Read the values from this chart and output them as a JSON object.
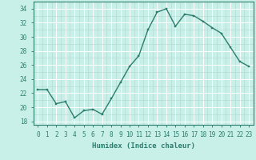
{
  "x": [
    0,
    1,
    2,
    3,
    4,
    5,
    6,
    7,
    8,
    9,
    10,
    11,
    12,
    13,
    14,
    15,
    16,
    17,
    18,
    19,
    20,
    21,
    22,
    23
  ],
  "y": [
    22.5,
    22.5,
    20.5,
    20.8,
    18.5,
    19.5,
    19.7,
    19.0,
    21.2,
    23.5,
    25.8,
    27.3,
    31.0,
    33.5,
    34.0,
    31.5,
    33.2,
    33.0,
    32.2,
    31.3,
    30.5,
    28.5,
    26.5,
    25.8
  ],
  "line_color": "#2d7d6e",
  "marker": "s",
  "markersize": 2.0,
  "linewidth": 1.0,
  "xlabel": "Humidex (Indice chaleur)",
  "bg_color": "#c8f0e8",
  "major_grid_color": "#b0d8d0",
  "minor_grid_color": "#b0d8d0",
  "ylim": [
    17.5,
    35.0
  ],
  "xlim": [
    -0.5,
    23.5
  ],
  "yticks": [
    18,
    20,
    22,
    24,
    26,
    28,
    30,
    32,
    34
  ],
  "xticks": [
    0,
    1,
    2,
    3,
    4,
    5,
    6,
    7,
    8,
    9,
    10,
    11,
    12,
    13,
    14,
    15,
    16,
    17,
    18,
    19,
    20,
    21,
    22,
    23
  ],
  "tick_fontsize": 5.5,
  "label_fontsize": 6.5,
  "spine_color": "#2d7d6e"
}
